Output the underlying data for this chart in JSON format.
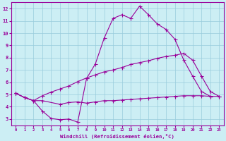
{
  "background_color": "#cceef4",
  "grid_color": "#99ccdd",
  "line_color": "#990099",
  "xlabel": "Windchill (Refroidissement éolien,°C)",
  "xlim": [
    -0.5,
    23.5
  ],
  "ylim": [
    2.5,
    12.5
  ],
  "xticks": [
    0,
    1,
    2,
    3,
    4,
    5,
    6,
    7,
    8,
    9,
    10,
    11,
    12,
    13,
    14,
    15,
    16,
    17,
    18,
    19,
    20,
    21,
    22,
    23
  ],
  "yticks": [
    3,
    4,
    5,
    6,
    7,
    8,
    9,
    10,
    11,
    12
  ],
  "line1_x": [
    0,
    1,
    2,
    3,
    4,
    5,
    6,
    7,
    8,
    9,
    10,
    11,
    12,
    13,
    14,
    15,
    16,
    17,
    18,
    19,
    20,
    21,
    22
  ],
  "line1_y": [
    5.1,
    4.75,
    4.5,
    3.65,
    3.05,
    2.95,
    3.0,
    2.75,
    6.3,
    7.5,
    9.6,
    11.2,
    11.5,
    11.2,
    12.2,
    11.5,
    10.75,
    10.3,
    9.5,
    7.8,
    6.5,
    5.25,
    4.85
  ],
  "line2_x": [
    0,
    1,
    2,
    3,
    5,
    6,
    7,
    8,
    9,
    10,
    11,
    12,
    13,
    14,
    15,
    16,
    17,
    18,
    19,
    20,
    21,
    22,
    23
  ],
  "line2_y": [
    5.1,
    4.75,
    4.5,
    4.5,
    4.2,
    4.35,
    4.4,
    4.3,
    4.4,
    4.5,
    4.5,
    4.55,
    4.6,
    4.65,
    4.7,
    4.75,
    4.8,
    4.85,
    4.9,
    4.9,
    4.9,
    4.85,
    4.85
  ],
  "line3_x": [
    0,
    1,
    2,
    3,
    4,
    5,
    6,
    7,
    8,
    9,
    10,
    11,
    12,
    13,
    14,
    15,
    16,
    17,
    18,
    19,
    20,
    21,
    22,
    23
  ],
  "line3_y": [
    5.1,
    4.75,
    4.5,
    4.9,
    5.2,
    5.45,
    5.7,
    6.05,
    6.35,
    6.6,
    6.85,
    7.0,
    7.2,
    7.45,
    7.6,
    7.75,
    7.95,
    8.1,
    8.2,
    8.35,
    7.8,
    6.5,
    5.25,
    4.85
  ]
}
